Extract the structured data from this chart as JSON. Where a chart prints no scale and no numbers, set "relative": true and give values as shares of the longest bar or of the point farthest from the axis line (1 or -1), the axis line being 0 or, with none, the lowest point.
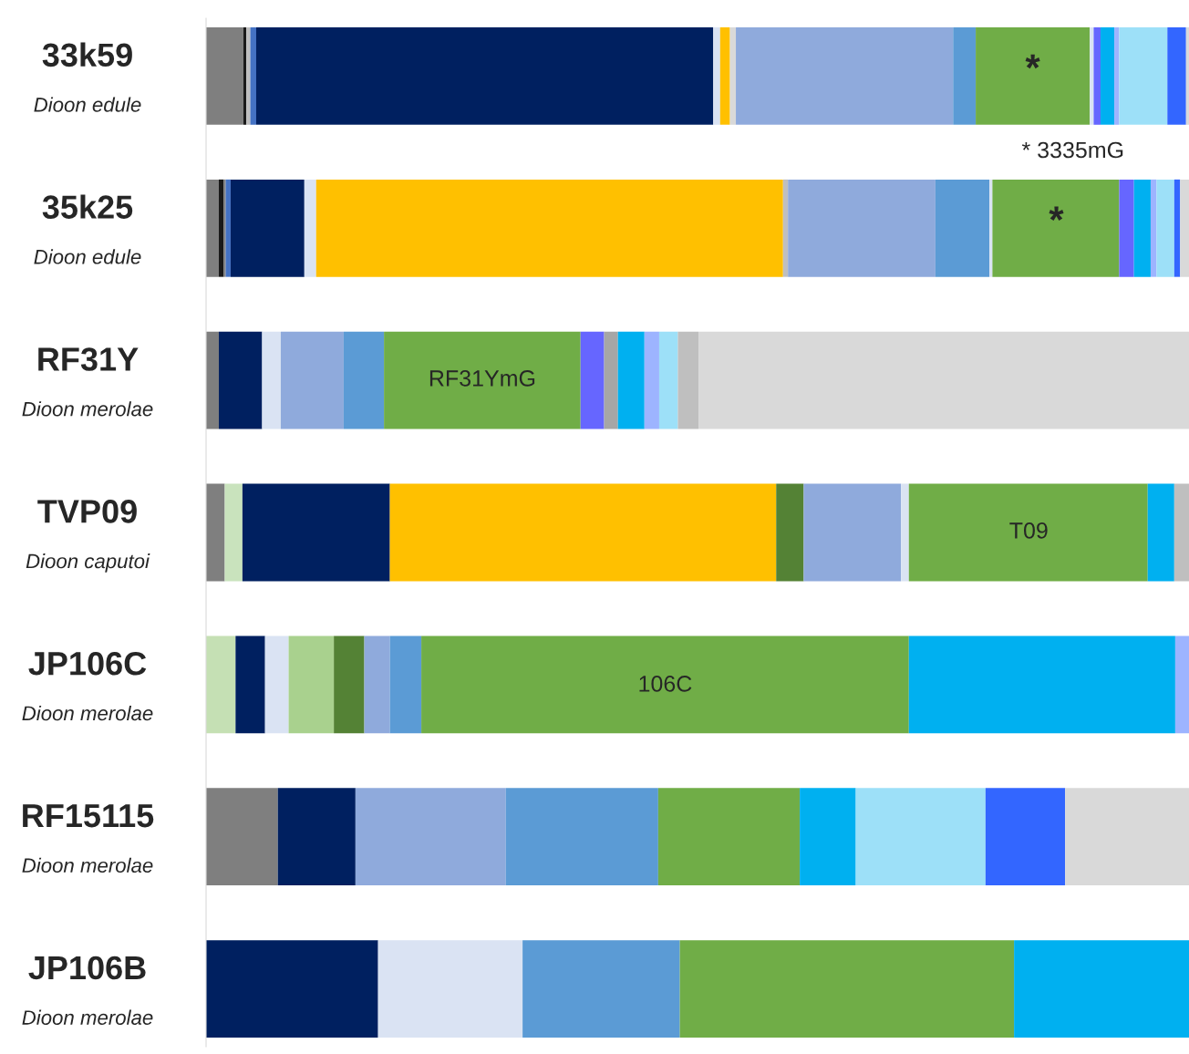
{
  "chart_data": {
    "type": "bar",
    "orientation": "horizontal",
    "stacked": true,
    "relative": true,
    "legend": false,
    "categories": [
      "33k59\nDioon edule",
      "35k25\nDioon edule",
      "RF31Y\nDioon merolae",
      "TVP09\nDioon caputoi",
      "JP106C\nDioon merolae",
      "RF15115\nDioon merolae",
      "JP106B\nDioon merolae"
    ],
    "series": [
      {
        "values": [
          0.038,
          0.013,
          0.013,
          0.019,
          0.03,
          0.073,
          0.175
        ],
        "colors": [
          "#7f7f7f",
          "#7f7f7f",
          "#7f7f7f",
          "#7f7f7f",
          "#c5e0b4",
          "#7f7f7f",
          "#002060"
        ]
      },
      {
        "values": [
          0.003,
          0.005,
          0.044,
          0.018,
          0.03,
          0.079,
          0.147
        ],
        "colors": [
          "#1a1a1a",
          "#1a1a1a",
          "#002060",
          "#c9e3bd",
          "#002060",
          "#002060",
          "#dae3f3"
        ]
      },
      {
        "values": [
          0.004,
          0.002,
          0.019,
          0.15,
          0.024,
          0.153,
          0.16
        ],
        "colors": [
          "#bfbfbf",
          "#7f7f7f",
          "#dae3f3",
          "#002060",
          "#dae3f3",
          "#8faadc",
          "#5b9bd5"
        ]
      },
      {
        "values": [
          0.006,
          0.005,
          0.064,
          0.393,
          0.046,
          0.155,
          0.34
        ],
        "colors": [
          "#4472c4",
          "#4472c4",
          "#8faadc",
          "#ffc000",
          "#a9d18e",
          "#5b9bd5",
          "#70ad47"
        ]
      },
      {
        "values": [
          0.465,
          0.075,
          0.041,
          0.028,
          0.031,
          0.144,
          0.178
        ],
        "colors": [
          "#002060",
          "#002060",
          "#5b9bd5",
          "#548235",
          "#548235",
          "#70ad47",
          "#00b0f0"
        ]
      },
      {
        "values": [
          0.007,
          0.012,
          0.2,
          0.099,
          0.026,
          0.057,
          null
        ],
        "colors": [
          "#dae3f3",
          "#dae3f3",
          "#70ad47",
          "#8faadc",
          "#8faadc",
          "#00b0f0",
          null
        ]
      },
      {
        "values": [
          0.01,
          0.475,
          0.024,
          0.008,
          0.032,
          0.132,
          null
        ],
        "colors": [
          "#ffc000",
          "#ffc000",
          "#6666ff",
          "#dae3f3",
          "#5b9bd5",
          "#9de0f8",
          null
        ]
      },
      {
        "values": [
          0.006,
          0.005,
          0.014,
          0.243,
          0.496,
          0.081,
          null
        ],
        "colors": [
          "#d9d9d9",
          "#bfbfbf",
          "#a6a6a6",
          "#70ad47",
          "#70ad47",
          "#3366ff",
          null
        ]
      },
      {
        "values": [
          0.221,
          0.15,
          0.027,
          0.027,
          0.271,
          0.126,
          null
        ],
        "colors": [
          "#8faadc",
          "#8faadc",
          "#00b0f0",
          "#00b0f0",
          "#00b0f0",
          "#d9d9d9",
          null
        ]
      },
      {
        "values": [
          0.023,
          0.055,
          0.015,
          0.015,
          0.014,
          null,
          null
        ],
        "colors": [
          "#5b9bd5",
          "#5b9bd5",
          "#9db4ff",
          "#bfbfbf",
          "#9db4ff",
          null,
          null
        ]
      },
      {
        "values": [
          0.116,
          0.003,
          0.019,
          null,
          null,
          null,
          null
        ],
        "colors": [
          "#70ad47",
          "#dae3f3",
          "#9de0f8",
          null,
          null,
          null,
          null
        ]
      },
      {
        "values": [
          0.004,
          0.129,
          0.021,
          null,
          null,
          null,
          null
        ],
        "colors": [
          "#dae3f3",
          "#70ad47",
          "#bfbfbf",
          null,
          null,
          null,
          null
        ]
      },
      {
        "values": [
          0.007,
          0.015,
          0.499,
          null,
          null,
          null,
          null
        ],
        "colors": [
          "#6666ff",
          "#6666ff",
          "#d9d9d9",
          null,
          null,
          null,
          null
        ]
      },
      {
        "values": [
          0.014,
          0.017,
          null,
          null,
          null,
          null,
          null
        ],
        "colors": [
          "#00b0f0",
          "#00b0f0",
          null,
          null,
          null,
          null,
          null
        ]
      },
      {
        "values": [
          0.005,
          0.006,
          null,
          null,
          null,
          null,
          null
        ],
        "colors": [
          "#9db4ff",
          "#9db4ff",
          null,
          null,
          null,
          null,
          null
        ]
      },
      {
        "values": [
          0.049,
          0.018,
          null,
          null,
          null,
          null,
          null
        ],
        "colors": [
          "#9de0f8",
          "#9de0f8",
          null,
          null,
          null,
          null,
          null
        ]
      },
      {
        "values": [
          0.019,
          0.006,
          null,
          null,
          null,
          null,
          null
        ],
        "colors": [
          "#3366ff",
          "#3366ff",
          null,
          null,
          null,
          null,
          null
        ]
      },
      {
        "values": [
          0.003,
          0.009,
          null,
          null,
          null,
          null,
          null
        ],
        "colors": [
          "#d9d9d9",
          "#d9d9d9",
          null,
          null,
          null,
          null,
          null
        ]
      }
    ],
    "annotations": [
      "*",
      "*",
      "RF31YmG",
      "T09",
      "106C",
      "* 3335mG"
    ]
  }
}
